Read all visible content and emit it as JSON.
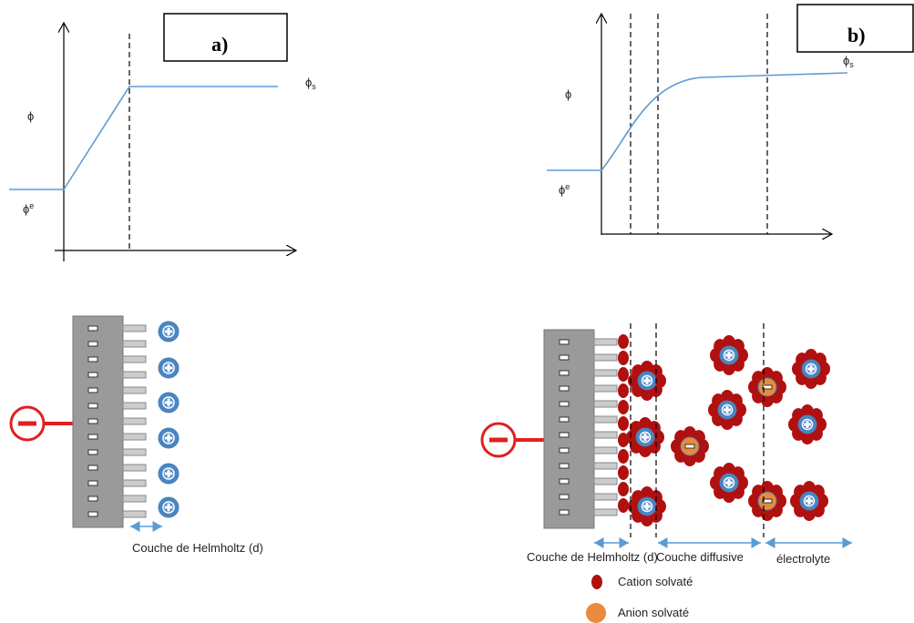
{
  "panel_a": {
    "label": "a)",
    "phi": "ϕ",
    "phi_s": {
      "symbol": "ϕ",
      "sub": "s"
    },
    "phi_e": {
      "symbol": "ϕ",
      "sup": "e"
    },
    "layer_label": "Couche de Helmholtz (d)"
  },
  "panel_b": {
    "label": "b)",
    "phi": "ϕ",
    "phi_s": {
      "symbol": "ϕ",
      "sub": "s"
    },
    "phi_e": {
      "symbol": "ϕ",
      "sup": "e"
    },
    "layer_labels": [
      "Couche de Helmholtz (d)",
      "Couche diffusive",
      "électrolyte"
    ],
    "legend": [
      "Cation solvaté",
      "Anion solvaté"
    ]
  }
}
